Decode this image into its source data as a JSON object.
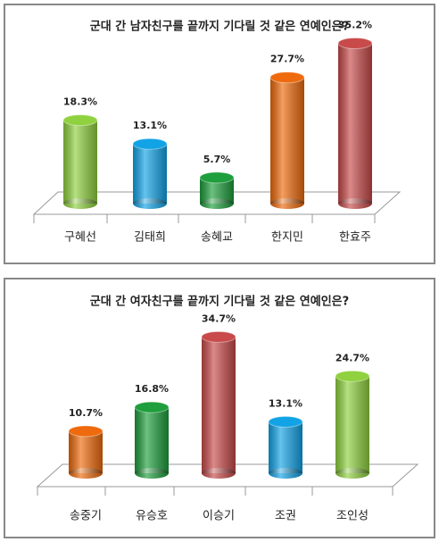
{
  "chart_data": [
    {
      "type": "bar",
      "title": "군대 간 남자친구를 끝까지 기다릴 것 같은 연예인은?",
      "categories": [
        "구혜선",
        "김태희",
        "송혜교",
        "한지민",
        "한효주"
      ],
      "values": [
        18.3,
        13.1,
        5.7,
        27.7,
        35.2
      ],
      "value_labels": [
        "18.3%",
        "13.1%",
        "5.7%",
        "27.7%",
        "35.2%"
      ],
      "colors": [
        "#8fd13f",
        "#12a3e6",
        "#1e9e3c",
        "#ee6a0c",
        "#c84a4a"
      ]
    },
    {
      "type": "bar",
      "title": "군대 간 여자친구를 끝까지 기다릴 것 같은 연예인은?",
      "categories": [
        "송중기",
        "유승호",
        "이승기",
        "조권",
        "조인성"
      ],
      "values": [
        10.7,
        16.8,
        34.7,
        13.1,
        24.7
      ],
      "value_labels": [
        "10.7%",
        "16.8%",
        "34.7%",
        "13.1%",
        "24.7%"
      ],
      "colors": [
        "#ee6a0c",
        "#1e9e3c",
        "#c84a4a",
        "#12a3e6",
        "#8fd13f"
      ]
    }
  ]
}
